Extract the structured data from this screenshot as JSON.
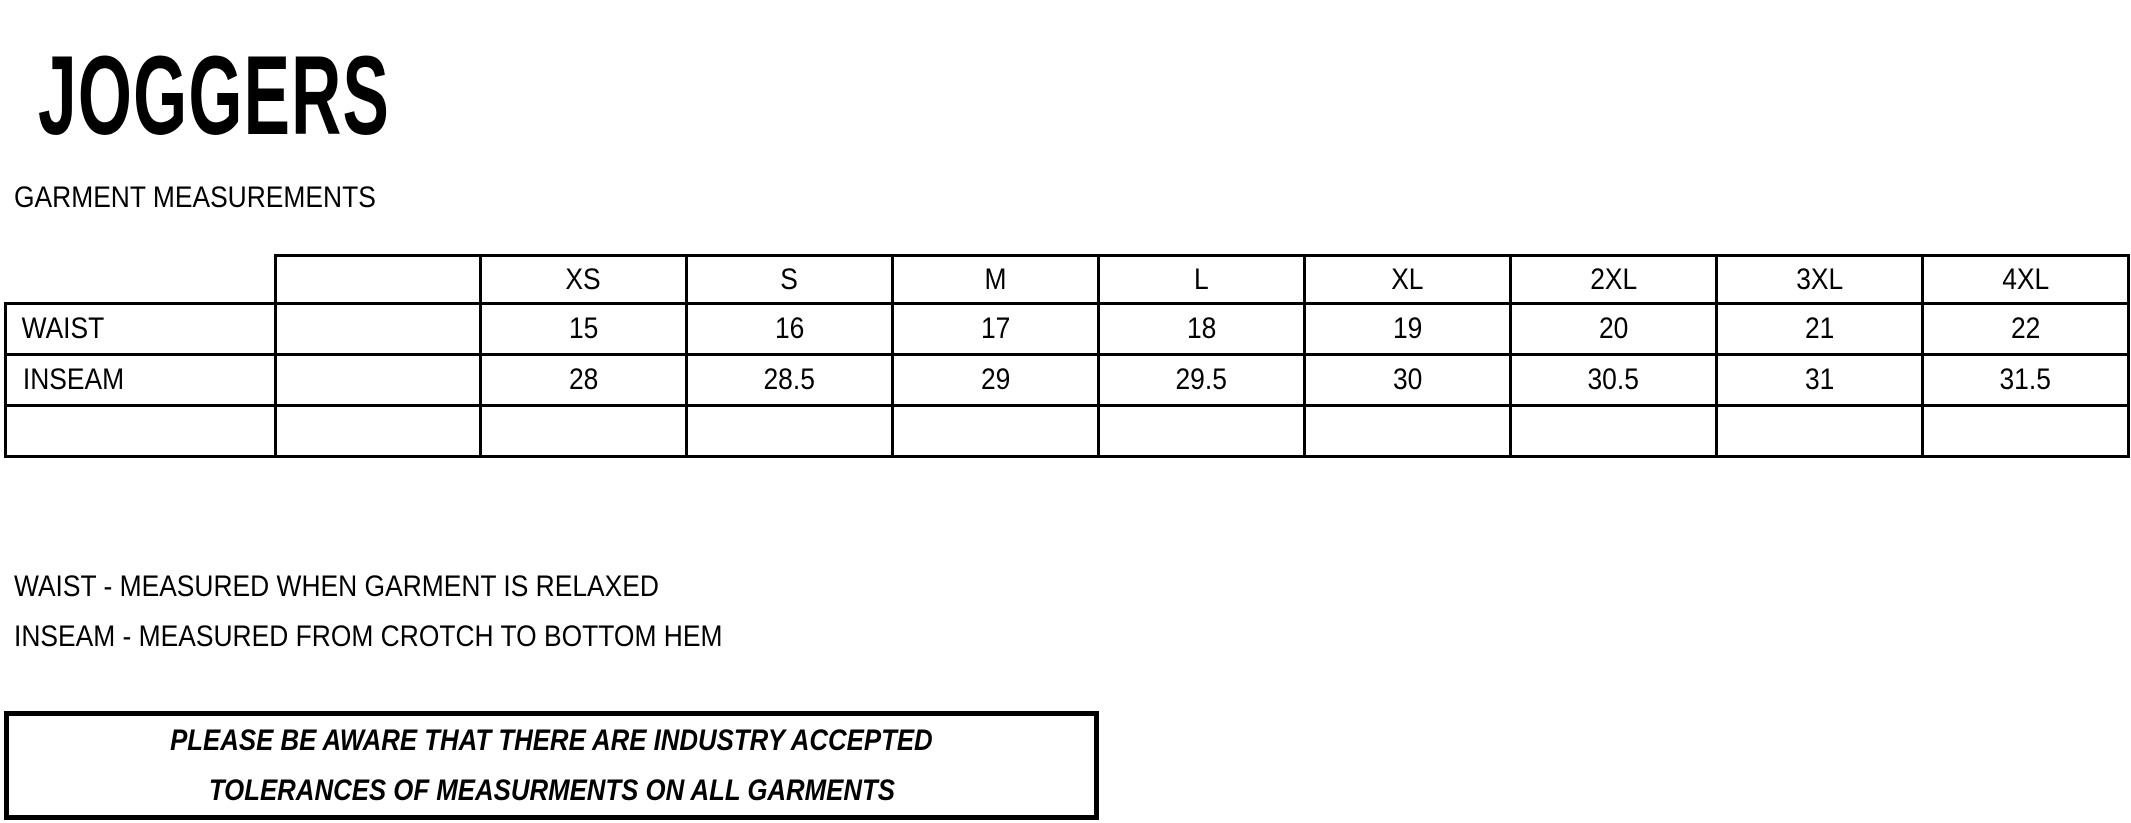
{
  "title": "JOGGERS",
  "subtitle": "GARMENT MEASUREMENTS",
  "table": {
    "sizes": [
      "XS",
      "S",
      "M",
      "L",
      "XL",
      "2XL",
      "3XL",
      "4XL"
    ],
    "rows": [
      {
        "label": "WAIST",
        "values": [
          "15",
          "16",
          "17",
          "18",
          "19",
          "20",
          "21",
          "22"
        ]
      },
      {
        "label": "INSEAM",
        "values": [
          "28",
          "28.5",
          "29",
          "29.5",
          "30",
          "30.5",
          "31",
          "31.5"
        ]
      },
      {
        "label": "",
        "values": [
          "",
          "",
          "",
          "",
          "",
          "",
          "",
          ""
        ]
      }
    ]
  },
  "notes": [
    "WAIST - MEASURED WHEN GARMENT IS RELAXED",
    "INSEAM - MEASURED FROM CROTCH TO BOTTOM HEM"
  ],
  "disclaimer": [
    "PLEASE BE AWARE THAT THERE ARE INDUSTRY ACCEPTED",
    "TOLERANCES OF MEASURMENTS ON ALL GARMENTS"
  ]
}
